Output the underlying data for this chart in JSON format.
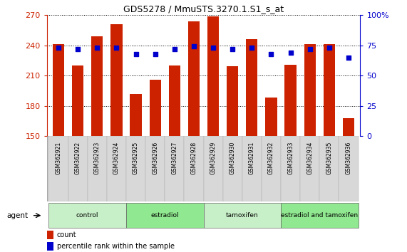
{
  "title": "GDS5278 / MmuSTS.3270.1.S1_s_at",
  "samples": [
    "GSM362921",
    "GSM362922",
    "GSM362923",
    "GSM362924",
    "GSM362925",
    "GSM362926",
    "GSM362927",
    "GSM362928",
    "GSM362929",
    "GSM362930",
    "GSM362931",
    "GSM362932",
    "GSM362933",
    "GSM362934",
    "GSM362935",
    "GSM362936"
  ],
  "counts": [
    241,
    220,
    249,
    261,
    192,
    206,
    220,
    264,
    269,
    219,
    246,
    188,
    221,
    241,
    241,
    168
  ],
  "percentiles": [
    73,
    72,
    73,
    73,
    68,
    68,
    72,
    74,
    73,
    72,
    73,
    68,
    69,
    72,
    73,
    65
  ],
  "groups": [
    {
      "label": "control",
      "start": 0,
      "end": 4,
      "color": "#c8f0c8"
    },
    {
      "label": "estradiol",
      "start": 4,
      "end": 8,
      "color": "#90e890"
    },
    {
      "label": "tamoxifen",
      "start": 8,
      "end": 12,
      "color": "#c8f0c8"
    },
    {
      "label": "estradiol and tamoxifen",
      "start": 12,
      "end": 16,
      "color": "#90e890"
    }
  ],
  "bar_color": "#cc2200",
  "dot_color": "#0000cc",
  "ylim_left": [
    150,
    270
  ],
  "ylim_right": [
    0,
    100
  ],
  "yticks_left": [
    150,
    180,
    210,
    240,
    270
  ],
  "yticks_right": [
    0,
    25,
    50,
    75,
    100
  ],
  "ylabel_left_color": "#cc2200",
  "ylabel_right_color": "#0000cc",
  "agent_label": "agent",
  "legend_count_label": "count",
  "legend_pct_label": "percentile rank within the sample",
  "background_color": "#ffffff",
  "bar_width": 0.6
}
